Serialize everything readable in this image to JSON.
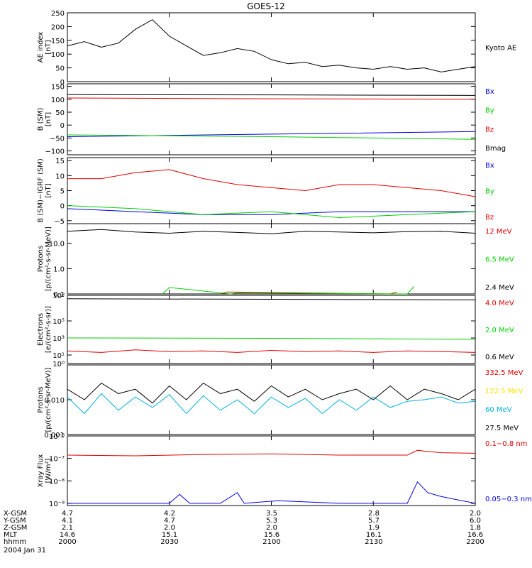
{
  "title": "GOES-12",
  "colors": {
    "black": "#000000",
    "red": "#e00000",
    "green": "#00d000",
    "blue": "#0000e0",
    "yellow": "#ffe000",
    "cyan": "#00b0e0"
  },
  "chart_data": [
    {
      "id": "ae",
      "type": "line",
      "ylabel": [
        "AE index",
        "[nT]"
      ],
      "ylim": [
        0,
        250
      ],
      "ticks": [
        {
          "v": 0,
          "label": "0"
        },
        {
          "v": 50,
          "label": "50"
        },
        {
          "v": 100,
          "label": "100"
        },
        {
          "v": 150,
          "label": "150"
        },
        {
          "v": 200,
          "label": "200"
        },
        {
          "v": 250,
          "label": "250"
        }
      ],
      "series": [
        {
          "name": "Kyoto AE",
          "color": "#000000",
          "x": [
            0,
            5,
            10,
            15,
            20,
            25,
            30,
            35,
            40,
            45,
            50,
            55,
            60,
            65,
            70,
            75,
            80,
            85,
            90,
            95,
            100,
            105,
            110,
            115,
            120
          ],
          "y": [
            130,
            145,
            125,
            140,
            190,
            225,
            165,
            130,
            95,
            105,
            120,
            110,
            80,
            65,
            70,
            55,
            60,
            50,
            45,
            55,
            45,
            50,
            35,
            45,
            55
          ]
        }
      ]
    },
    {
      "id": "b",
      "type": "line",
      "ylabel": [
        "B (SM)",
        "[nT]"
      ],
      "ylim": [
        -115,
        160
      ],
      "ticks": [
        {
          "v": -100,
          "label": "−100"
        },
        {
          "v": -50,
          "label": "−50"
        },
        {
          "v": 0,
          "label": "0"
        },
        {
          "v": 50,
          "label": "50"
        },
        {
          "v": 100,
          "label": "100"
        },
        {
          "v": 150,
          "label": "150"
        }
      ],
      "series": [
        {
          "name": "Bx",
          "color": "#0000e0",
          "x": [
            0,
            60,
            120
          ],
          "y": [
            -45,
            -35,
            -25
          ]
        },
        {
          "name": "By",
          "color": "#00d000",
          "x": [
            0,
            60,
            120
          ],
          "y": [
            -38,
            -45,
            -55
          ]
        },
        {
          "name": "Bz",
          "color": "#e00000",
          "x": [
            0,
            60,
            120
          ],
          "y": [
            105,
            102,
            100
          ]
        },
        {
          "name": "Bmag",
          "color": "#000000",
          "x": [
            0,
            60,
            120
          ],
          "y": [
            118,
            117,
            115
          ]
        }
      ]
    },
    {
      "id": "bsub",
      "type": "line",
      "ylabel": [
        "B (SM)−IGRF (SM)",
        "[nT]"
      ],
      "ylim": [
        -6,
        16
      ],
      "ticks": [
        {
          "v": -5,
          "label": "−5"
        },
        {
          "v": 0,
          "label": "0"
        },
        {
          "v": 5,
          "label": "5"
        },
        {
          "v": 10,
          "label": "10"
        },
        {
          "v": 15,
          "label": "15"
        }
      ],
      "series": [
        {
          "name": "Bx",
          "color": "#0000e0",
          "x": [
            0,
            20,
            40,
            60,
            80,
            100,
            120
          ],
          "y": [
            -1,
            -2,
            -3,
            -3,
            -2,
            -2,
            -2
          ]
        },
        {
          "name": "By",
          "color": "#00d000",
          "x": [
            0,
            20,
            40,
            60,
            80,
            100,
            120
          ],
          "y": [
            0,
            -1,
            -3,
            -2,
            -4,
            -3,
            -2
          ]
        },
        {
          "name": "Bz",
          "color": "#e00000",
          "x": [
            0,
            10,
            20,
            30,
            40,
            50,
            60,
            70,
            80,
            90,
            100,
            110,
            120
          ],
          "y": [
            9,
            9,
            11,
            12,
            9,
            7,
            6,
            5,
            7,
            7,
            6,
            5,
            3
          ]
        }
      ]
    },
    {
      "id": "protons",
      "type": "line",
      "yscale": "log",
      "ylabel": [
        "Protons",
        "[p/(cm²-s-sr-MeV)]"
      ],
      "ylim": [
        0.1,
        60
      ],
      "ticks": [
        {
          "v": 0.1,
          "label": "0.1"
        },
        {
          "v": 1,
          "label": "1.0"
        },
        {
          "v": 10,
          "label": "10.0"
        }
      ],
      "series": [
        {
          "name": "12 MeV",
          "color": "#e00000",
          "x": [
            45,
            47,
            95,
            97
          ],
          "y": [
            0.1,
            0.12,
            0.1,
            0.12
          ]
        },
        {
          "name": "6.5 MeV",
          "color": "#00d000",
          "x": [
            28,
            30,
            48,
            50,
            100,
            102
          ],
          "y": [
            0.1,
            0.18,
            0.1,
            0.11,
            0.1,
            0.2
          ]
        },
        {
          "name": "2.4 MeV",
          "color": "#000000",
          "x": [
            0,
            10,
            20,
            30,
            40,
            50,
            60,
            70,
            80,
            90,
            100,
            110,
            120
          ],
          "y": [
            30,
            35,
            28,
            25,
            30,
            27,
            24,
            30,
            28,
            26,
            29,
            30,
            25
          ]
        }
      ]
    },
    {
      "id": "electrons",
      "type": "line",
      "yscale": "log",
      "ylabel": [
        "Electrons",
        "[e/(cm²-s-sr)]"
      ],
      "ylim": [
        1,
        100000000
      ],
      "ticks": [
        {
          "v": 1,
          "label": "10⁰"
        },
        {
          "v": 10,
          "label": "10¹"
        },
        {
          "v": 1000,
          "label": "10³"
        },
        {
          "v": 100000,
          "label": "10⁵"
        },
        {
          "v": 100000000,
          "label": "10⁸"
        }
      ],
      "series": [
        {
          "name": "4.0 MeV",
          "color": "#e00000",
          "x": [
            0,
            10,
            20,
            30,
            40,
            50,
            60,
            70,
            80,
            90,
            100,
            110,
            120
          ],
          "y": [
            30,
            20,
            40,
            25,
            30,
            20,
            35,
            25,
            30,
            20,
            30,
            25,
            20
          ]
        },
        {
          "name": "2.0 MeV",
          "color": "#00d000",
          "x": [
            0,
            60,
            120
          ],
          "y": [
            1000,
            900,
            700
          ]
        },
        {
          "name": "0.6 MeV",
          "color": "#000000",
          "x": [
            0,
            60,
            120
          ],
          "y": [
            40000000,
            35000000,
            30000000
          ]
        }
      ]
    },
    {
      "id": "hiprotons",
      "type": "line",
      "yscale": "log",
      "ylabel": [
        "Protons",
        "[p/(cm²-s-sr-MeV)]"
      ],
      "ylim": [
        0.001,
        0.1
      ],
      "ticks": [
        {
          "v": 0.001,
          "label": "0.001"
        },
        {
          "v": 0.01,
          "label": "0.010"
        }
      ],
      "series": [
        {
          "name": "332.5 MeV",
          "color": "#e00000",
          "x": [],
          "y": []
        },
        {
          "name": "122.5 MeV",
          "color": "#ffe000",
          "x": [],
          "y": []
        },
        {
          "name": "60 MeV",
          "color": "#00b0e0",
          "x": [
            0,
            5,
            10,
            15,
            20,
            25,
            30,
            35,
            40,
            45,
            50,
            55,
            60,
            65,
            70,
            75,
            80,
            85,
            90,
            95,
            100,
            105,
            110,
            115,
            120
          ],
          "y": [
            0.012,
            0.004,
            0.015,
            0.005,
            0.012,
            0.006,
            0.014,
            0.004,
            0.013,
            0.005,
            0.01,
            0.004,
            0.012,
            0.006,
            0.011,
            0.004,
            0.01,
            0.005,
            0.012,
            0.006,
            0.009,
            0.01,
            0.012,
            0.008,
            0.009
          ]
        },
        {
          "name": "27.5 MeV",
          "color": "#000000",
          "x": [
            0,
            5,
            10,
            15,
            20,
            25,
            30,
            35,
            40,
            45,
            50,
            55,
            60,
            65,
            70,
            75,
            80,
            85,
            90,
            95,
            100,
            105,
            110,
            115,
            120
          ],
          "y": [
            0.02,
            0.01,
            0.03,
            0.015,
            0.02,
            0.008,
            0.025,
            0.01,
            0.03,
            0.015,
            0.02,
            0.009,
            0.025,
            0.012,
            0.02,
            0.01,
            0.015,
            0.02,
            0.01,
            0.025,
            0.01,
            0.02,
            0.015,
            0.01,
            0.02
          ]
        }
      ]
    },
    {
      "id": "xray",
      "type": "line",
      "yscale": "log",
      "ylabel": [
        "Xray Flux",
        "[W/m²]"
      ],
      "ylim": [
        8e-10,
        1e-06
      ],
      "ticks": [
        {
          "v": 1e-09,
          "label": "10⁻⁹"
        },
        {
          "v": 1e-08,
          "label": "10⁻⁸"
        },
        {
          "v": 1e-07,
          "label": "10⁻⁷"
        },
        {
          "v": 1e-06,
          "label": "10⁻⁶"
        }
      ],
      "series": [
        {
          "name": "0.1−0.8 nm",
          "color": "#e00000",
          "x": [
            0,
            20,
            40,
            60,
            80,
            100,
            103,
            105,
            110,
            120
          ],
          "y": [
            1.4e-07,
            1.3e-07,
            1.5e-07,
            1.6e-07,
            1.4e-07,
            1.4e-07,
            2.3e-07,
            2.1e-07,
            1.8e-07,
            1.7e-07
          ]
        },
        {
          "name": "0.05−0.3 nm",
          "color": "#0000e0",
          "x": [
            0,
            30,
            33,
            36,
            45,
            50,
            52,
            62,
            80,
            100,
            103,
            106,
            110,
            120
          ],
          "y": [
            1e-09,
            1e-09,
            2.5e-09,
            1e-09,
            1e-09,
            3e-09,
            1e-09,
            1.3e-09,
            1e-09,
            1e-09,
            9e-09,
            3e-09,
            2e-09,
            1e-09
          ]
        }
      ]
    }
  ],
  "orbit": {
    "rows": [
      {
        "label": "X-GSM",
        "values": [
          "4.7",
          "4.2",
          "3.5",
          "2.8",
          "2.0"
        ]
      },
      {
        "label": "Y-GSM",
        "values": [
          "4.1",
          "4.7",
          "5.3",
          "5.7",
          "6.0"
        ]
      },
      {
        "label": "Z-GSM",
        "values": [
          "2.1",
          "2.0",
          "2.0",
          "1.9",
          "1.8"
        ]
      },
      {
        "label": "MLT",
        "values": [
          "14.6",
          "15.1",
          "15.6",
          "16.1",
          "16.6"
        ]
      },
      {
        "label": "hhmm",
        "values": [
          "2000",
          "2030",
          "2100",
          "2130",
          "2200"
        ]
      }
    ],
    "date": "2004 Jan 31"
  }
}
